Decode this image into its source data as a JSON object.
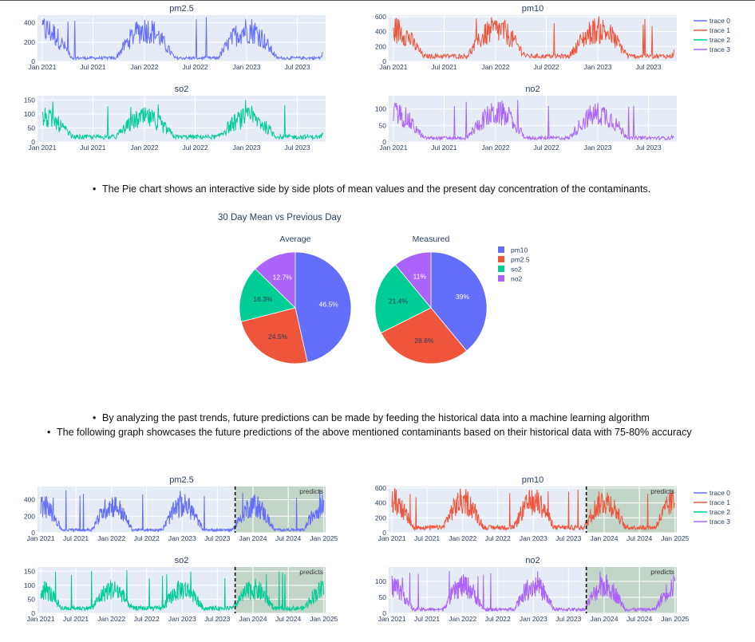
{
  "text": {
    "pie_note": "The Pie chart shows an interactive side by side plots of mean values and the present day concentration of the contaminants.",
    "predict_note_1": "By analyzing the past trends, future predictions can be made by feeding the historical data into a machine learning algorithm",
    "predict_note_2": "The following graph showcases the future predictions of the above mentioned contaminants based on their historical data with 75-80% accuracy"
  },
  "colors": {
    "pm25": "#636efa",
    "pm10": "#EF553B",
    "so2": "#00cc96",
    "no2": "#ab63fa",
    "plot_bg": "#e5ecf6",
    "predict_bg": "#c3d5c9"
  },
  "chart_data": [
    {
      "type": "line",
      "title": "pm2.5",
      "xlim": [
        "2020-12-15",
        "2023-10-10"
      ],
      "x_ticks": [
        "Jan 2021",
        "Jul 2021",
        "Jan 2022",
        "Jul 2022",
        "Jan 2023",
        "Jul 2023"
      ],
      "y_ticks": [
        0,
        200,
        400
      ],
      "ylim": [
        0,
        480
      ],
      "series": [
        {
          "name": "trace 0",
          "color": "#636efa",
          "x_start": "2021-01-01",
          "x_end": "2023-09-30",
          "winter_high": 330,
          "summer_low": 35,
          "peak": 460
        }
      ]
    },
    {
      "type": "line",
      "title": "pm10",
      "xlim": [
        "2020-12-15",
        "2023-10-10"
      ],
      "x_ticks": [
        "Jan 2021",
        "Jul 2021",
        "Jan 2022",
        "Jul 2022",
        "Jan 2023",
        "Jul 2023"
      ],
      "y_ticks": [
        0,
        200,
        400,
        600
      ],
      "ylim": [
        0,
        620
      ],
      "series": [
        {
          "name": "trace 1",
          "color": "#EF553B",
          "x_start": "2021-01-01",
          "x_end": "2023-09-30",
          "winter_high": 420,
          "summer_low": 70,
          "peak": 580
        }
      ]
    },
    {
      "type": "line",
      "title": "so2",
      "xlim": [
        "2020-12-15",
        "2023-10-10"
      ],
      "x_ticks": [
        "Jan 2021",
        "Jul 2021",
        "Jan 2022",
        "Jul 2022",
        "Jan 2023",
        "Jul 2023"
      ],
      "y_ticks": [
        0,
        50,
        100,
        150
      ],
      "ylim": [
        0,
        165
      ],
      "series": [
        {
          "name": "trace 2",
          "color": "#00cc96",
          "x_start": "2021-01-01",
          "x_end": "2023-09-30",
          "winter_high": 85,
          "summer_low": 18,
          "peak": 155
        }
      ]
    },
    {
      "type": "line",
      "title": "no2",
      "xlim": [
        "2020-12-15",
        "2023-10-10"
      ],
      "x_ticks": [
        "Jan 2021",
        "Jul 2021",
        "Jan 2022",
        "Jul 2022",
        "Jan 2023",
        "Jul 2023"
      ],
      "y_ticks": [
        0,
        50,
        100
      ],
      "ylim": [
        0,
        140
      ],
      "series": [
        {
          "name": "trace 3",
          "color": "#ab63fa",
          "x_start": "2021-01-01",
          "x_end": "2023-09-30",
          "winter_high": 85,
          "summer_low": 12,
          "peak": 130
        }
      ]
    },
    {
      "type": "pie",
      "title": "30 Day Mean vs Previous Day",
      "legend": [
        "pm10",
        "pm2.5",
        "so2",
        "no2"
      ],
      "legend_colors": [
        "#636efa",
        "#EF553B",
        "#00cc96",
        "#ab63fa"
      ],
      "pies": [
        {
          "name": "Average",
          "labels": [
            "pm10",
            "pm2.5",
            "so2",
            "no2"
          ],
          "values": [
            46.5,
            24.5,
            16.3,
            12.7
          ],
          "value_labels": [
            "46.5%",
            "24.5%",
            "16.3%",
            "12.7%"
          ]
        },
        {
          "name": "Measured",
          "labels": [
            "pm10",
            "pm2.5",
            "so2",
            "no2"
          ],
          "values": [
            39,
            28.6,
            21.4,
            11
          ],
          "value_labels": [
            "39%",
            "28.6%",
            "21.4%",
            "11%"
          ]
        }
      ]
    },
    {
      "type": "line",
      "title": "pm2.5",
      "xlim": [
        "2020-12-15",
        "2025-01-10"
      ],
      "x_ticks": [
        "Jan 2021",
        "Jul 2021",
        "Jan 2022",
        "Jul 2022",
        "Jan 2023",
        "Jul 2023",
        "Jan 2024",
        "Jul 2024",
        "Jan 2025"
      ],
      "y_ticks": [
        0,
        200,
        400
      ],
      "ylim": [
        0,
        560
      ],
      "prediction_start": "2023-10-01",
      "prediction_label": "predicts",
      "series": [
        {
          "name": "trace 0",
          "color": "#636efa",
          "x_start": "2021-01-01",
          "x_end": "2024-12-31",
          "winter_high": 330,
          "summer_low": 35,
          "peak": 520
        }
      ]
    },
    {
      "type": "line",
      "title": "pm10",
      "xlim": [
        "2020-12-15",
        "2025-01-10"
      ],
      "x_ticks": [
        "Jan 2021",
        "Jul 2021",
        "Jan 2022",
        "Jul 2022",
        "Jan 2023",
        "Jul 2023",
        "Jan 2024",
        "Jul 2024",
        "Jan 2025"
      ],
      "y_ticks": [
        0,
        200,
        400,
        600
      ],
      "ylim": [
        0,
        620
      ],
      "prediction_start": "2023-10-01",
      "prediction_label": "predicts",
      "series": [
        {
          "name": "trace 1",
          "color": "#EF553B",
          "x_start": "2021-01-01",
          "x_end": "2024-12-31",
          "winter_high": 420,
          "summer_low": 70,
          "peak": 580
        }
      ]
    },
    {
      "type": "line",
      "title": "so2",
      "xlim": [
        "2020-12-15",
        "2025-01-10"
      ],
      "x_ticks": [
        "Jan 2021",
        "Jul 2021",
        "Jan 2022",
        "Jul 2022",
        "Jan 2023",
        "Jul 2023",
        "Jan 2024",
        "Jul 2024",
        "Jan 2025"
      ],
      "y_ticks": [
        0,
        50,
        100,
        150
      ],
      "ylim": [
        0,
        165
      ],
      "prediction_start": "2023-10-01",
      "prediction_label": "predicts",
      "series": [
        {
          "name": "trace 2",
          "color": "#00cc96",
          "x_start": "2021-01-01",
          "x_end": "2024-12-31",
          "winter_high": 85,
          "summer_low": 18,
          "peak": 155
        }
      ]
    },
    {
      "type": "line",
      "title": "no2",
      "xlim": [
        "2020-12-15",
        "2025-01-10"
      ],
      "x_ticks": [
        "Jan 2021",
        "Jul 2021",
        "Jan 2022",
        "Jul 2022",
        "Jan 2023",
        "Jul 2023",
        "Jan 2024",
        "Jul 2024",
        "Jan 2025"
      ],
      "y_ticks": [
        0,
        50,
        100
      ],
      "ylim": [
        0,
        145
      ],
      "prediction_start": "2023-10-01",
      "prediction_label": "predicts",
      "series": [
        {
          "name": "trace 3",
          "color": "#ab63fa",
          "x_start": "2021-01-01",
          "x_end": "2024-12-31",
          "winter_high": 85,
          "summer_low": 12,
          "peak": 135
        }
      ]
    }
  ],
  "legend_top": {
    "items": [
      "trace 0",
      "trace 1",
      "trace 2",
      "trace 3"
    ],
    "colors": [
      "#636efa",
      "#EF553B",
      "#00cc96",
      "#ab63fa"
    ]
  },
  "legend_bottom": {
    "items": [
      "trace 0",
      "trace 1",
      "trace 2",
      "trace 3"
    ],
    "colors": [
      "#636efa",
      "#EF553B",
      "#00cc96",
      "#ab63fa"
    ]
  }
}
